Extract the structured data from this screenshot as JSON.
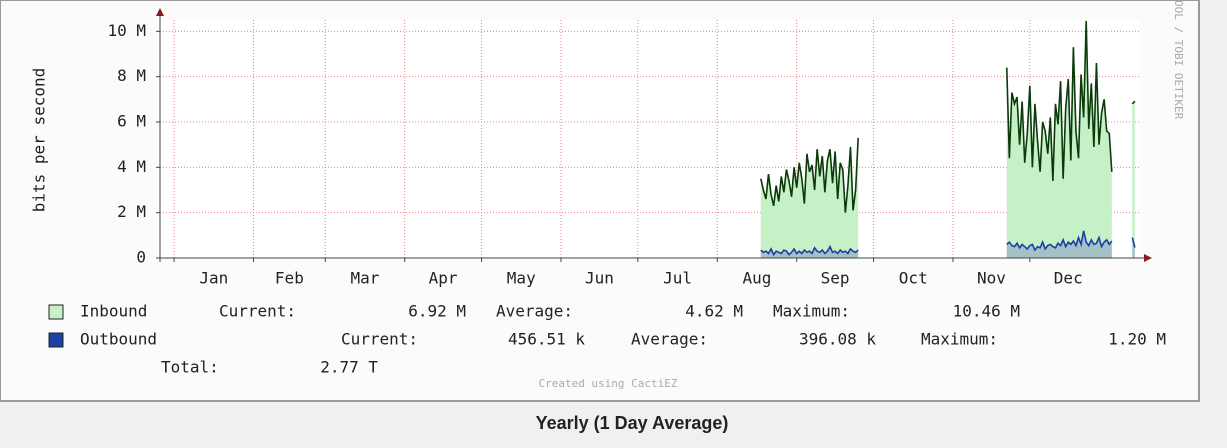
{
  "chart_data": {
    "type": "line",
    "y_label": "bits per second",
    "side_note": "OOL / TOBI OETIKER",
    "footer": "Created using CactiEZ",
    "caption": "Yearly (1 Day Average)",
    "grid": true,
    "xlim": [
      -5.5,
      377
    ],
    "xticks": [
      {
        "value": 0,
        "label": "Jan"
      },
      {
        "value": 31,
        "label": "Feb"
      },
      {
        "value": 59,
        "label": "Mar"
      },
      {
        "value": 90,
        "label": "Apr"
      },
      {
        "value": 120,
        "label": "May"
      },
      {
        "value": 151,
        "label": "Jun"
      },
      {
        "value": 181,
        "label": "Jul"
      },
      {
        "value": 212,
        "label": "Aug"
      },
      {
        "value": 243,
        "label": "Sep"
      },
      {
        "value": 273,
        "label": "Oct"
      },
      {
        "value": 304,
        "label": "Nov"
      },
      {
        "value": 334,
        "label": "Dec"
      }
    ],
    "ylim": [
      0,
      10.5
    ],
    "yticks": [
      0,
      {
        "value": 2,
        "label": "2 M"
      },
      {
        "value": 4,
        "label": "4 M"
      },
      {
        "value": 6,
        "label": "6 M"
      },
      {
        "value": 8,
        "label": "8 M"
      },
      {
        "value": 10,
        "label": "10 M"
      }
    ],
    "x": [
      229,
      230,
      231,
      232,
      233,
      234,
      235,
      236,
      237,
      238,
      239,
      240,
      241,
      242,
      243,
      244,
      245,
      246,
      247,
      248,
      249,
      250,
      251,
      252,
      253,
      254,
      255,
      256,
      257,
      258,
      259,
      260,
      261,
      262,
      263,
      264,
      265,
      266,
      267,
      268,
      325,
      326,
      327,
      328,
      329,
      330,
      331,
      332,
      333,
      334,
      335,
      336,
      337,
      338,
      339,
      340,
      341,
      342,
      343,
      344,
      345,
      346,
      347,
      348,
      349,
      350,
      351,
      352,
      353,
      354,
      355,
      356,
      357,
      358,
      359,
      360,
      361,
      362,
      363,
      364,
      365,
      366,
      367,
      374,
      375
    ],
    "series": [
      {
        "name": "Inbound",
        "color": "#0b3a0b",
        "fill": "#c6f0c6",
        "values": [
          3.5,
          3.0,
          2.6,
          3.7,
          2.8,
          2.3,
          3.2,
          2.5,
          3.6,
          2.9,
          3.9,
          3.4,
          2.7,
          4.0,
          3.1,
          4.2,
          3.5,
          2.4,
          4.6,
          3.8,
          4.1,
          3.0,
          4.8,
          3.6,
          4.5,
          2.9,
          4.3,
          4.8,
          3.3,
          4.7,
          2.6,
          4.2,
          3.9,
          2.0,
          3.2,
          4.9,
          2.1,
          3.0,
          5.3,
          null,
          8.4,
          4.4,
          7.3,
          6.8,
          7.1,
          5.0,
          6.9,
          4.2,
          5.5,
          7.6,
          4.0,
          6.8,
          5.2,
          3.8,
          6.0,
          5.6,
          4.6,
          6.2,
          3.4,
          6.8,
          5.9,
          7.8,
          3.5,
          6.6,
          7.9,
          4.3,
          9.3,
          5.6,
          4.4,
          8.1,
          6.2,
          10.46,
          5.7,
          7.7,
          4.9,
          8.6,
          5.0,
          6.4,
          7.0,
          5.6,
          5.5,
          3.8,
          null,
          6.8,
          6.92
        ],
        "stats": [
          "Current:",
          "6.92 M",
          "Average:",
          "4.62 M",
          "Maximum:",
          "10.46 M"
        ]
      },
      {
        "name": "Outbound",
        "color": "#1a3fa6",
        "fill": "#9fb8c4",
        "values": [
          0.35,
          0.25,
          0.3,
          0.2,
          0.4,
          0.15,
          0.3,
          0.25,
          0.2,
          0.35,
          0.3,
          0.15,
          0.25,
          0.4,
          0.2,
          0.3,
          0.2,
          0.35,
          0.25,
          0.3,
          0.2,
          0.45,
          0.3,
          0.25,
          0.35,
          0.2,
          0.3,
          0.5,
          0.25,
          0.3,
          0.2,
          0.35,
          0.25,
          0.3,
          0.2,
          0.4,
          0.3,
          0.25,
          0.35,
          null,
          0.6,
          0.7,
          0.55,
          0.5,
          0.65,
          0.45,
          0.6,
          0.5,
          0.4,
          0.55,
          0.6,
          0.35,
          0.5,
          0.45,
          0.7,
          0.4,
          0.55,
          0.6,
          0.5,
          0.45,
          0.65,
          0.55,
          0.8,
          0.5,
          0.7,
          0.6,
          0.75,
          0.55,
          0.9,
          0.6,
          1.2,
          0.7,
          0.55,
          0.8,
          0.6,
          0.65,
          0.9,
          0.5,
          0.7,
          0.8,
          0.6,
          0.75,
          null,
          0.9,
          0.46
        ],
        "stats": [
          "Current:",
          "456.51 k",
          "Average:",
          "396.08 k",
          "Maximum:",
          "1.20 M"
        ]
      }
    ],
    "total": [
      "Total:",
      "2.77 T"
    ]
  }
}
